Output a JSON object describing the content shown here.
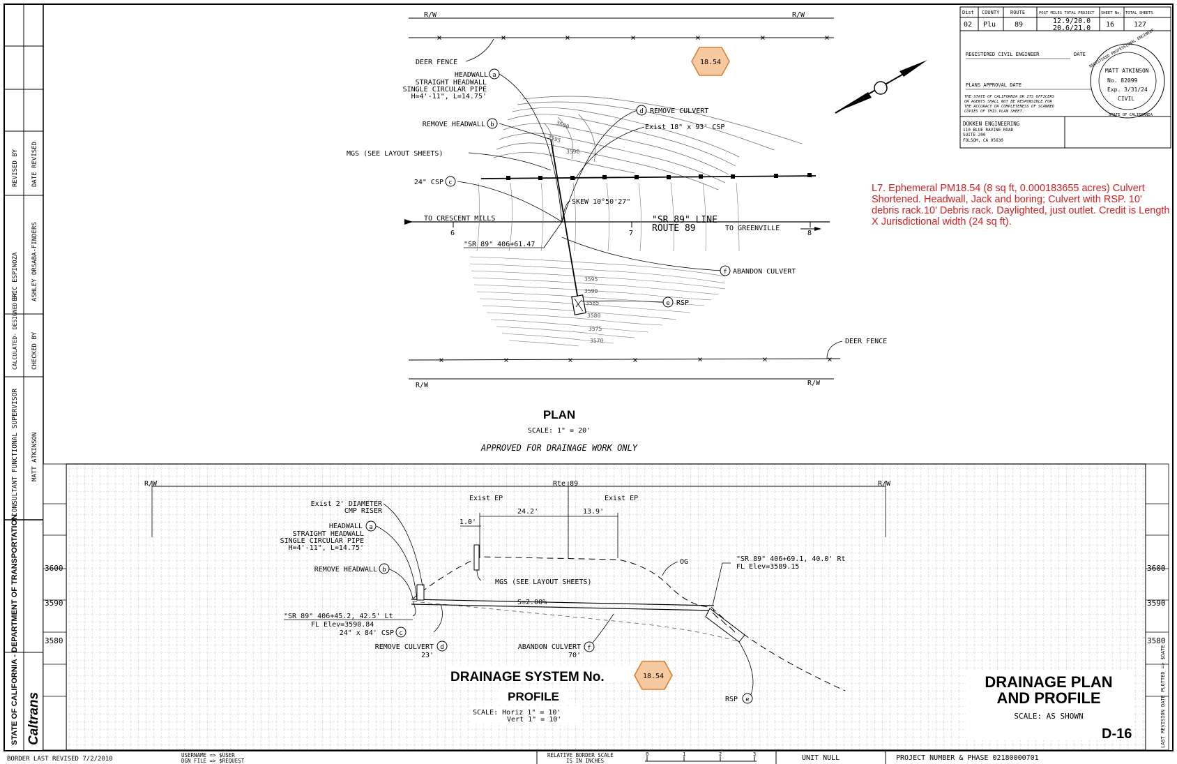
{
  "title_block": {
    "header": {
      "dist": "Dist",
      "county": "COUNTY",
      "route": "ROUTE",
      "post_miles": "POST MILES TOTAL PROJECT",
      "sheet_no": "SHEET No.",
      "total_sheets": "TOTAL SHEETS"
    },
    "row": {
      "dist": "02",
      "county": "Plu",
      "route": "89",
      "post_miles_1": "12.9/20.0",
      "post_miles_2": "20.6/21.0",
      "sheet_no": "16",
      "total_sheets": "127"
    },
    "registered_engineer": "REGISTERED CIVIL ENGINEER",
    "date_label": "DATE",
    "plans_approval_date": "PLANS APPROVAL DATE",
    "disclaimer": [
      "THE STATE OF CALIFORNIA OR ITS OFFICERS",
      "OR AGENTS SHALL NOT BE RESPONSIBLE FOR",
      "THE ACCURACY OR COMPLETENESS OF SCANNED",
      "COPIES OF THIS PLAN SHEET."
    ],
    "consultant": [
      "DOKKEN ENGINEERING",
      "110 BLUE RAVINE ROAD",
      "SUITE 200",
      "FOLSOM, CA 95630"
    ],
    "seal": {
      "ring_top": "REGISTERED PROFESSIONAL ENGINEER",
      "ring_bottom": "STATE OF CALIFORNIA",
      "name": "MATT ATKINSON",
      "no": "No. 82099",
      "exp": "Exp. 3/31/24",
      "type": "CIVIL"
    }
  },
  "left_strip": {
    "revised_by": "REVISED BY",
    "date_revised": "DATE REVISED",
    "name1": "ERIC ESPINOZA",
    "name2": "ASHLEY ORSABA-FINDERS",
    "calculated": "CALCULATED- DESIGNED BY",
    "checked": "CHECKED BY",
    "supervisor": "CONSULTANT FUNCTIONAL SUPERVISOR",
    "supervisor_name": "MATT ATKINSON",
    "department": "STATE OF CALIFORNIA - DEPARTMENT OF TRANSPORTATION",
    "logo": "Caltrans"
  },
  "red_note": "L7. Ephemeral PM18.54 (8 sq ft, 0.000183655 acres) Culvert Shortened. Headwall, Jack and boring; Culvert with RSP. 10' debris rack.10' Debris rack. Daylighted, just outlet. Credit is Length X Jurisdictional width (24 sq ft).",
  "plan": {
    "rw": "R/W",
    "station_tag": "18.54",
    "deer_fence": "DEER FENCE",
    "headwall_a": [
      "HEADWALL",
      "STRAIGHT HEADWALL",
      "SINGLE CIRCULAR PIPE",
      "H=4'-11\", L=14.75'"
    ],
    "remove_headwall": "REMOVE HEADWALL",
    "mgs": "MGS (SEE LAYOUT SHEETS)",
    "csp24": "24\" CSP",
    "remove_culvert": "REMOVE CULVERT",
    "exist_csp": "Exist 18\" x 93' CSP",
    "skew": "SKEW 10°50'27\"",
    "to_crescent": "TO CRESCENT MILLS",
    "to_greenville": "TO GREENVILLE",
    "line_label": "\"SR 89\" LINE",
    "route_label": "ROUTE 89",
    "station_label": "\"SR 89\" 406+61.47",
    "abandon": "ABANDON CULVERT",
    "rsp": "RSP",
    "stations": [
      "6",
      "7",
      "8"
    ],
    "contours": [
      "3600",
      "3595",
      "3590",
      "3585",
      "3580",
      "3575",
      "3570"
    ],
    "title": "PLAN",
    "scale": "SCALE: 1\" = 20'",
    "approved": "APPROVED FOR DRAINAGE WORK ONLY"
  },
  "profile": {
    "rw": "R/W",
    "rte": "Rte 89",
    "exist_ep": "Exist EP",
    "dim1": "24.2'",
    "dim2": "13.9'",
    "dim3": "1.0'",
    "riser": [
      "Exist 2' DIAMETER",
      "CMP RISER"
    ],
    "headwall_a": [
      "HEADWALL",
      "STRAIGHT HEADWALL",
      "SINGLE CIRCULAR PIPE",
      "H=4'-11\", L=14.75'"
    ],
    "remove_headwall": "REMOVE HEADWALL",
    "og": "OG",
    "outlet": [
      "\"SR 89\" 406+69.1, 40.0' Rt",
      "FL Elev=3589.15"
    ],
    "mgs": "MGS (SEE LAYOUT SHEETS)",
    "slope": "S=2.00%",
    "inlet": [
      "\"SR 89\" 406+45.2, 42.5' Lt",
      "FL Elev=3590.84"
    ],
    "csp": "24\" x 84' CSP",
    "remove_culvert": [
      "REMOVE CULVERT",
      "23'"
    ],
    "abandon": [
      "ABANDON CULVERT",
      "70'"
    ],
    "rsp": "RSP",
    "elev": [
      "3600",
      "3590",
      "3580"
    ],
    "title": "DRAINAGE SYSTEM No.",
    "tag": "18.54",
    "subtitle": "PROFILE",
    "scale_h": "SCALE: Horiz 1\" = 10'",
    "scale_v": "Vert 1\" = 10'"
  },
  "sheet_title": {
    "line1": "DRAINAGE PLAN",
    "line2": "AND PROFILE",
    "scale": "SCALE: AS SHOWN",
    "number": "D-16"
  },
  "right_strip": "LAST REVISION  DATE PLOTTED => $DATE",
  "footer": {
    "border": "BORDER LAST REVISED 7/2/2010",
    "user": "USERNAME => $USER",
    "dgn": "DGN FILE => $REQUEST",
    "relative": "RELATIVE BORDER SCALE",
    "inches": "IS IN INCHES",
    "ticks": [
      "0",
      "1",
      "2",
      "3"
    ],
    "unit": "UNIT NULL",
    "project": "PROJECT NUMBER & PHASE 02180000701"
  },
  "colors": {
    "tag_fill": "#f7c9a1",
    "tag_stroke": "#e07a2a",
    "note": "#e41a1a",
    "grid": "#9a9a9a"
  }
}
